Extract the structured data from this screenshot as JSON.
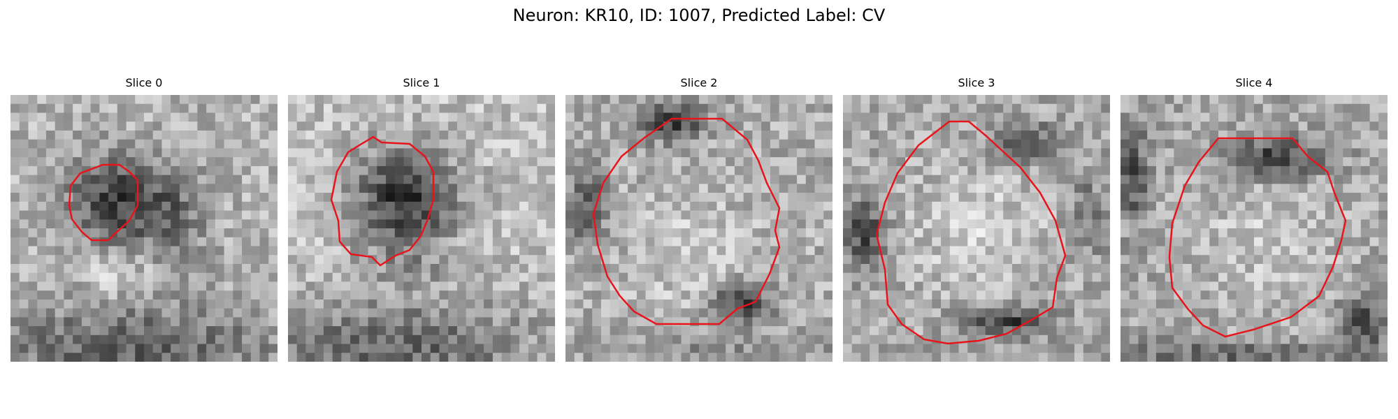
{
  "figure": {
    "title": "Neuron: KR10, ID: 1007, Predicted Label: CV"
  },
  "contour_color": "#e8141c",
  "panels": [
    {
      "title": "Slice 0"
    },
    {
      "title": "Slice 1"
    },
    {
      "title": "Slice 2"
    },
    {
      "title": "Slice 3"
    },
    {
      "title": "Slice 4"
    }
  ]
}
